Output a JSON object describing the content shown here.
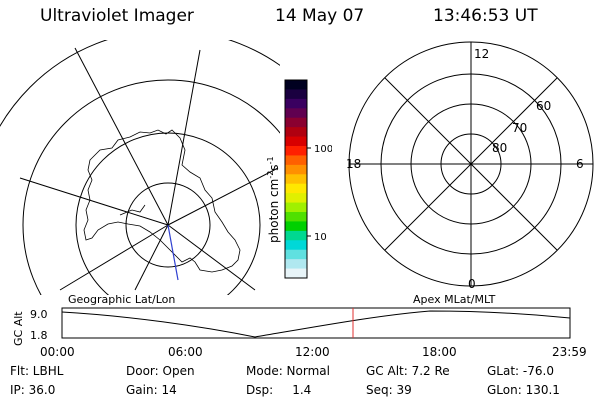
{
  "header": {
    "title": "Ultraviolet Imager",
    "date": "14 May 07",
    "time": "13:46:53 UT"
  },
  "colorbar": {
    "label": "photon cm⁻²s⁻¹",
    "label_main": "photon cm",
    "label_exp1": "-2",
    "label_mid": "s",
    "label_exp2": "-1",
    "ticks": [
      "100",
      "10"
    ],
    "colors": [
      "#000020",
      "#1a0040",
      "#3a0060",
      "#600050",
      "#8a0030",
      "#b00010",
      "#d80000",
      "#ff2000",
      "#ff6000",
      "#ff9000",
      "#ffc000",
      "#ffe800",
      "#e0f000",
      "#a0f000",
      "#50e000",
      "#00d000",
      "#00d890",
      "#00d8d8",
      "#60e0e0",
      "#b0e8f0",
      "#e8f4f8"
    ]
  },
  "left_panel": {
    "label": "Geographic Lat/Lon"
  },
  "right_panel": {
    "label": "Apex  MLat/MLT",
    "mlt_labels": {
      "top": "12",
      "left": "18",
      "right": "6",
      "bottom": "0"
    },
    "lat_labels": [
      "60",
      "70",
      "80"
    ]
  },
  "timeline": {
    "y_label": "GC Alt",
    "y_ticks": [
      "9.0",
      "1.8"
    ],
    "x_ticks": [
      "00:00",
      "06:00",
      "12:00",
      "18:00",
      "23:59"
    ],
    "marker_time": "13:46",
    "marker_color": "#e03030"
  },
  "info": {
    "row1": [
      "Flt: LBHL",
      "Door: Open",
      "Mode: Normal",
      "GC Alt: 7.2 Re",
      "GLat: -76.0"
    ],
    "row2": [
      "IP: 36.0",
      "Gain: 14",
      "Dsp:     1.4",
      "Seq: 39",
      "GLon: 130.1"
    ]
  }
}
